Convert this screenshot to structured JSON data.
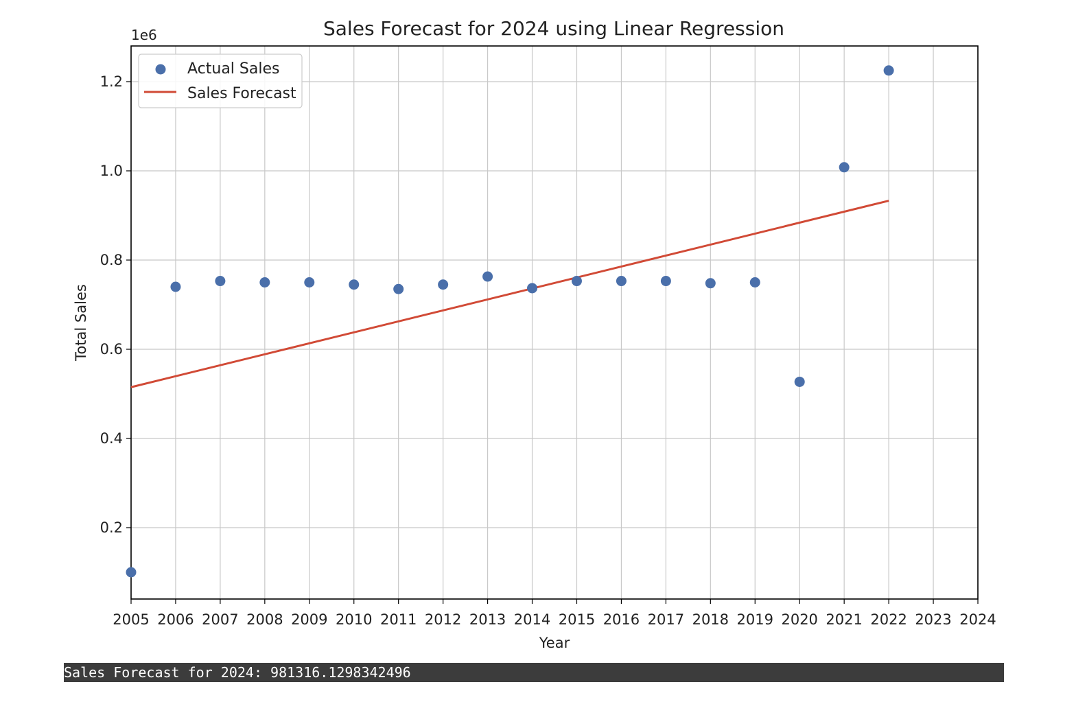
{
  "chart_data": {
    "type": "scatter",
    "title": "Sales Forecast for 2024 using Linear Regression",
    "xlabel": "Year",
    "ylabel": "Total Sales",
    "y_offset_label": "1e6",
    "xlim": [
      2005,
      2024
    ],
    "ylim": [
      0.04,
      1.28
    ],
    "x_ticks": [
      "2005",
      "2006",
      "2007",
      "2008",
      "2009",
      "2010",
      "2011",
      "2012",
      "2013",
      "2014",
      "2015",
      "2016",
      "2017",
      "2018",
      "2019",
      "2020",
      "2021",
      "2022",
      "2023",
      "2024"
    ],
    "y_ticks": [
      "0.2",
      "0.4",
      "0.6",
      "0.8",
      "1.0",
      "1.2"
    ],
    "grid": true,
    "legend_position": "top-left",
    "series": [
      {
        "name": "Actual Sales",
        "kind": "scatter",
        "color": "#4a6faa",
        "x": [
          2005,
          2006,
          2007,
          2008,
          2009,
          2010,
          2011,
          2012,
          2013,
          2014,
          2015,
          2016,
          2017,
          2018,
          2019,
          2020,
          2021,
          2022
        ],
        "y": [
          0.1,
          0.74,
          0.753,
          0.75,
          0.75,
          0.745,
          0.735,
          0.745,
          0.763,
          0.737,
          0.753,
          0.753,
          0.753,
          0.748,
          0.75,
          0.527,
          1.008,
          1.225
        ]
      },
      {
        "name": "Sales Forecast",
        "kind": "line",
        "color": "#d14a36",
        "x": [
          2005,
          2022
        ],
        "y": [
          0.515,
          0.933
        ]
      }
    ]
  },
  "output": {
    "text": "Sales Forecast for 2024: 981316.1298342496"
  }
}
